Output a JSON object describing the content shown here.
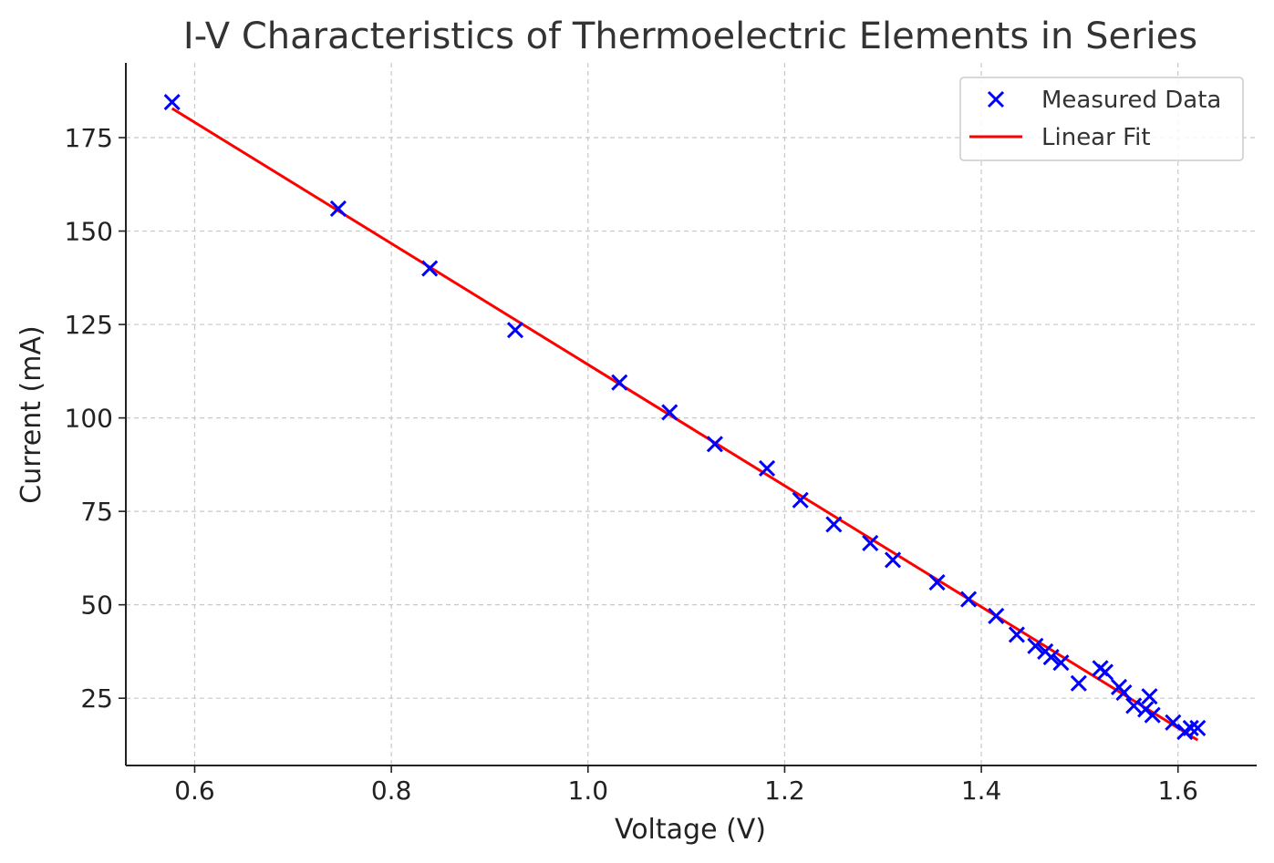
{
  "chart_data": {
    "type": "scatter",
    "title": "I-V Characteristics of Thermoelectric Elements in Series",
    "xlabel": "Voltage (V)",
    "ylabel": "Current (mA)",
    "xlim": [
      0.53,
      1.68
    ],
    "ylim": [
      7,
      195
    ],
    "xticks": [
      0.6,
      0.8,
      1.0,
      1.2,
      1.4,
      1.6
    ],
    "xtick_labels": [
      "0.6",
      "0.8",
      "1.0",
      "1.2",
      "1.4",
      "1.6"
    ],
    "yticks": [
      25,
      50,
      75,
      100,
      125,
      150,
      175
    ],
    "ytick_labels": [
      "25",
      "50",
      "75",
      "100",
      "125",
      "150",
      "175"
    ],
    "grid": true,
    "legend_position": "top-right",
    "series": [
      {
        "name": "Measured Data",
        "kind": "scatter",
        "marker": "x",
        "color": "#0000ff",
        "points": [
          [
            0.577,
            184.5
          ],
          [
            0.746,
            156.0
          ],
          [
            0.839,
            140.0
          ],
          [
            0.926,
            123.5
          ],
          [
            1.032,
            109.5
          ],
          [
            1.083,
            101.5
          ],
          [
            1.129,
            93.0
          ],
          [
            1.182,
            86.5
          ],
          [
            1.216,
            78.0
          ],
          [
            1.25,
            71.5
          ],
          [
            1.287,
            66.5
          ],
          [
            1.31,
            62.0
          ],
          [
            1.355,
            56.0
          ],
          [
            1.387,
            51.5
          ],
          [
            1.415,
            47.0
          ],
          [
            1.436,
            42.0
          ],
          [
            1.455,
            39.0
          ],
          [
            1.465,
            37.5
          ],
          [
            1.471,
            36.0
          ],
          [
            1.481,
            34.5
          ],
          [
            1.499,
            29.0
          ],
          [
            1.521,
            33.0
          ],
          [
            1.526,
            32.0
          ],
          [
            1.54,
            28.0
          ],
          [
            1.545,
            26.5
          ],
          [
            1.555,
            23.0
          ],
          [
            1.567,
            22.0
          ],
          [
            1.571,
            25.5
          ],
          [
            1.574,
            20.5
          ],
          [
            1.595,
            18.5
          ],
          [
            1.607,
            16.0
          ],
          [
            1.613,
            17.0
          ],
          [
            1.62,
            17.0
          ]
        ]
      },
      {
        "name": "Linear Fit",
        "kind": "line",
        "color": "#ff0000",
        "points": [
          [
            0.577,
            182.8
          ],
          [
            1.62,
            13.8
          ]
        ]
      }
    ]
  }
}
